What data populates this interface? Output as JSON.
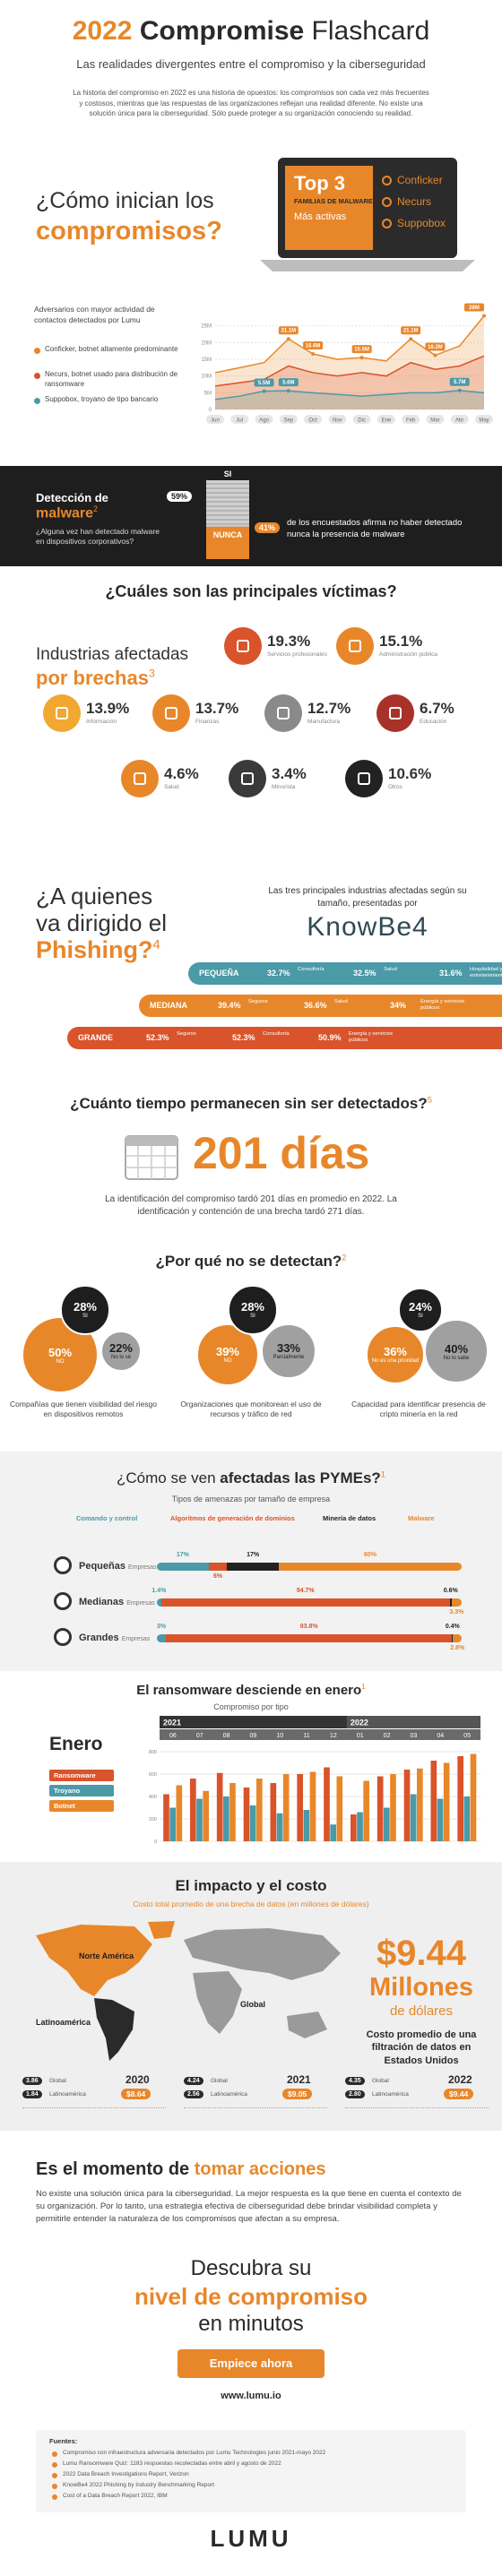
{
  "header": {
    "title_year": "2022",
    "title_bold": "Compromise",
    "title_rest": "Flashcard",
    "subtitle": "Las realidades divergentes entre el compromiso y la ciberseguridad",
    "intro": "La historia del compromiso en 2022 es una historia de opuestos: los compromisos son cada vez más frecuentes y costosos, mientras que las respuestas de las organizaciones reflejan una realidad diferente. No existe una solución única para la ciberseguridad. Sólo puede proteger a su organización conociendo su realidad."
  },
  "inicio": {
    "question_a": "¿Cómo inician los",
    "question_b": "compromisos?",
    "top_title": "Top 3",
    "top_sub": "FAMILIAS DE MALWARE",
    "top_sub2": "Más activas",
    "families": [
      "Conficker",
      "Necurs",
      "Suppobox"
    ]
  },
  "adversarios": {
    "intro": "Adversarios con mayor actividad de contactos detectados por Lumu",
    "notes": [
      {
        "text": "Conficker, botnet altamente predominante",
        "color": "#e8872a"
      },
      {
        "text": "Necurs, botnet usado para distribución de ransomware",
        "color": "#d9532b"
      },
      {
        "text": "Suppobox, troyano de tipo bancario",
        "color": "#4a9aa8"
      }
    ],
    "chart": {
      "type": "area",
      "categories": [
        "Jun",
        "Jul",
        "Ago",
        "Sep",
        "Oct",
        "Nov",
        "Dic",
        "Ene",
        "Feb",
        "Mar",
        "Abr",
        "May"
      ],
      "ylim": [
        0,
        30
      ],
      "yticks": [
        0,
        {
          "value": 5,
          "label": "5M"
        },
        {
          "value": 10,
          "label": "10M"
        },
        {
          "value": 15,
          "label": "15M"
        },
        {
          "value": 20,
          "label": "20M"
        },
        {
          "value": 25,
          "label": "25M"
        }
      ],
      "grid": true,
      "series": [
        {
          "color": "#e8872a",
          "values": [
            11,
            12.5,
            14,
            21.1,
            16.6,
            15,
            15.5,
            14.5,
            21.1,
            16.2,
            19,
            28
          ],
          "value_labels": [
            null,
            null,
            null,
            "21.1M",
            "16.6M",
            null,
            "15.5M",
            null,
            "21.1M",
            "16.2M",
            null,
            "28M"
          ]
        },
        {
          "color": "#d9532b",
          "values": [
            7,
            8,
            9,
            13,
            11,
            10,
            11,
            10,
            14,
            12,
            13,
            16
          ],
          "value_labels": [
            null,
            null,
            null,
            null,
            null,
            null,
            null,
            null,
            null,
            null,
            null,
            null
          ]
        },
        {
          "color": "#4a9aa8",
          "values": [
            3,
            4,
            5.5,
            5.6,
            5,
            4.5,
            4,
            4.5,
            5,
            5,
            5.7,
            5
          ],
          "value_labels": [
            null,
            null,
            "5.5M",
            "5.6M",
            null,
            null,
            null,
            null,
            null,
            null,
            "5.7M",
            null
          ]
        }
      ]
    }
  },
  "deteccion": {
    "title_a": "Detección de",
    "title_b": "malware",
    "note_ref": "2",
    "question": "¿Alguna vez han detectado malware en dispositivos corporativos?",
    "si_label": "SI",
    "si_value": "59%",
    "nunca_label": "NUNCA",
    "nunca_value": "41%",
    "nunca_text": "de los encuestados afirma no haber detectado nunca la presencia de malware"
  },
  "victimas": {
    "title": "¿Cuáles son las principales víctimas?",
    "sub_a": "Industrias afectadas",
    "sub_b": "por brechas",
    "note_ref": "3",
    "items": [
      {
        "value": "19.3%",
        "label": "Servicios profesionales",
        "color": "#d9532b"
      },
      {
        "value": "15.1%",
        "label": "Administración pública",
        "color": "#e8872a"
      },
      {
        "value": "13.9%",
        "label": "Información",
        "color": "#f0a830"
      },
      {
        "value": "13.7%",
        "label": "Finanzas",
        "color": "#e8872a"
      },
      {
        "value": "12.7%",
        "label": "Manufactura",
        "color": "#8a8a8a"
      },
      {
        "value": "6.7%",
        "label": "Educación",
        "color": "#a8322a"
      },
      {
        "value": "4.6%",
        "label": "Salud",
        "color": "#e8872a"
      },
      {
        "value": "3.4%",
        "label": "Minorista",
        "color": "#3a3a3a"
      },
      {
        "value": "10.6%",
        "label": "Otros",
        "color": "#222222"
      }
    ]
  },
  "phishing": {
    "title_a": "¿A quienes",
    "title_b": "va dirigido el",
    "title_c": "Phishing?",
    "note_ref": "4",
    "intro": "Las tres principales industrias afectadas según su tamaño, presentadas por",
    "brand": "KnowBe4",
    "rows": [
      {
        "size": "PEQUEÑA",
        "color": "#4a9aa8",
        "items": [
          {
            "value": "32.7%",
            "label": "Consultoría"
          },
          {
            "value": "32.5%",
            "label": "Salud"
          },
          {
            "value": "31.6%",
            "label": "Hospitalidad y entretenimiento"
          }
        ]
      },
      {
        "size": "MEDIANA",
        "color": "#e8872a",
        "items": [
          {
            "value": "39.4%",
            "label": "Seguros"
          },
          {
            "value": "36.6%",
            "label": "Salud"
          },
          {
            "value": "34%",
            "label": "Energía y servicios públicos"
          }
        ]
      },
      {
        "size": "GRANDE",
        "color": "#d9532b",
        "items": [
          {
            "value": "52.3%",
            "label": "Seguros"
          },
          {
            "value": "52.3%",
            "label": "Consultoría"
          },
          {
            "value": "50.9%",
            "label": "Energía y servicios públicos"
          }
        ]
      }
    ]
  },
  "tiempo": {
    "title": "¿Cuánto tiempo permanecen sin ser detectados?",
    "note_ref": "5",
    "days": "201 días",
    "text": "La identificación del compromiso tardó 201 días en promedio en 2022. La identificación y contención de una brecha tardó 271 días."
  },
  "porque": {
    "title": "¿Por qué no se detectan?",
    "note_ref": "2",
    "groups": [
      {
        "caption": "Compañías que tienen visibilidad del riesgo en dispositivos remotos",
        "circles": [
          {
            "value": "50%",
            "label": "NO",
            "color": "#e8872a"
          },
          {
            "value": "28%",
            "label": "SI",
            "color": "#1e1e1e"
          },
          {
            "value": "22%",
            "label": "No lo sé",
            "color": "#a0a0a0"
          }
        ]
      },
      {
        "caption": "Organizaciones que monitorean el uso de recursos y tráfico de red",
        "circles": [
          {
            "value": "39%",
            "label": "NO",
            "color": "#e8872a"
          },
          {
            "value": "28%",
            "label": "SI",
            "color": "#1e1e1e"
          },
          {
            "value": "33%",
            "label": "Parcialmente",
            "color": "#a0a0a0"
          }
        ]
      },
      {
        "caption": "Capacidad para identificar presencia de cripto minería en la red",
        "circles": [
          {
            "value": "36%",
            "label": "No es una prioridad",
            "color": "#e8872a"
          },
          {
            "value": "24%",
            "label": "SI",
            "color": "#1e1e1e"
          },
          {
            "value": "40%",
            "label": "No lo sabe",
            "color": "#a0a0a0"
          }
        ]
      }
    ]
  },
  "pymes": {
    "title_a": "¿Cómo se ven",
    "title_b": "afectadas las PYMEs?",
    "note_ref": "1",
    "subtitle": "Tipos de amenazas por tamaño de empresa",
    "legend": [
      {
        "name": "Comando y control",
        "color": "#4a9aa8"
      },
      {
        "name": "Algoritmos de generación de dominios",
        "color": "#d9532b"
      },
      {
        "name": "Minería de datos",
        "color": "#222222"
      },
      {
        "name": "Malware",
        "color": "#e8872a"
      }
    ],
    "rows": [
      {
        "label_a": "Pequeñas",
        "label_b": "Empresas",
        "values": [
          "17%",
          "6%",
          "17%",
          "60%"
        ]
      },
      {
        "label_a": "Medianas",
        "label_b": "Empresas",
        "values": [
          "1.4%",
          "94.7%",
          "0.6%",
          "3.3%"
        ]
      },
      {
        "label_a": "Grandes",
        "label_b": "Empresas",
        "values": [
          "3%",
          "93.8%",
          "0.4%",
          "2.8%"
        ]
      }
    ]
  },
  "ransomware": {
    "title": "El ransomware desciende en enero",
    "note_ref": "1",
    "subtitle": "Compromiso por tipo",
    "highlight": "Enero",
    "years": [
      "2021",
      "2022"
    ],
    "months": [
      "06",
      "07",
      "08",
      "09",
      "10",
      "11",
      "12",
      "01",
      "02",
      "03",
      "04",
      "05"
    ],
    "ylim": [
      0,
      800
    ],
    "yticks": [
      0,
      200,
      400,
      600,
      800
    ],
    "series": [
      {
        "name": "Ransomware",
        "color": "#d9532b",
        "values": [
          420,
          560,
          610,
          480,
          520,
          600,
          660,
          240,
          580,
          640,
          720,
          760
        ]
      },
      {
        "name": "Troyano",
        "color": "#4a9aa8",
        "values": [
          300,
          380,
          400,
          320,
          250,
          280,
          150,
          260,
          300,
          420,
          380,
          400
        ]
      },
      {
        "name": "Botnet",
        "color": "#e8872a",
        "values": [
          500,
          450,
          520,
          560,
          600,
          620,
          580,
          540,
          600,
          650,
          700,
          780
        ]
      }
    ]
  },
  "impacto": {
    "title": "El impacto y el costo",
    "subtitle": "Costo total promedio de una brecha de datos (en millones de dólares)",
    "regions": [
      "Norte América",
      "Latinoamérica",
      "Global"
    ],
    "big_value": "$9.44",
    "big_unit": "Millones",
    "big_unit2": "de dólares",
    "big_text": "Costo promedio de una filtración de datos en Estados Unidos",
    "years": [
      {
        "year": "2020",
        "rows": [
          {
            "value": "3.86",
            "label": "Global"
          },
          {
            "value": "1.84",
            "label": "Latinoamérica"
          }
        ],
        "us": "$8.64"
      },
      {
        "year": "2021",
        "rows": [
          {
            "value": "4.24",
            "label": "Global"
          },
          {
            "value": "2.56",
            "label": "Latinoamérica"
          }
        ],
        "us": "$9.05"
      },
      {
        "year": "2022",
        "rows": [
          {
            "value": "4.35",
            "label": "Global"
          },
          {
            "value": "2.80",
            "label": "Latinoamérica"
          }
        ],
        "us": "$9.44"
      }
    ]
  },
  "acciones": {
    "title_a": "Es el momento de",
    "title_b": "tomar acciones",
    "text": "No existe una solución única para la ciberseguridad. La mejor respuesta es la que tiene en cuenta el contexto de su organización. Por lo tanto, una estrategia efectiva de ciberseguridad debe brindar visibilidad completa y permitirle entender la naturaleza de los compromisos que afectan a su empresa."
  },
  "cta": {
    "line1": "Descubra su",
    "line2": "nivel de compromiso",
    "line3": "en minutos",
    "button": "Empiece ahora",
    "url": "www.lumu.io"
  },
  "fuentes": {
    "title": "Fuentes:",
    "items": [
      "Compromiso con infraestructura adversaria detectados por Lumu Technologies junio 2021-mayo 2022",
      "Lumu Ransomware Quiz: 1183 respuestas recolectadas entre abril y agosto de 2022",
      "2022 Data Breach Investigations Report, Verizon",
      "KnowBe4 2022 Phishing by Industry Benchmarking Report",
      "Cost of a Data Breach Report 2022, IBM"
    ]
  },
  "footer": {
    "logo": "LUMU"
  }
}
